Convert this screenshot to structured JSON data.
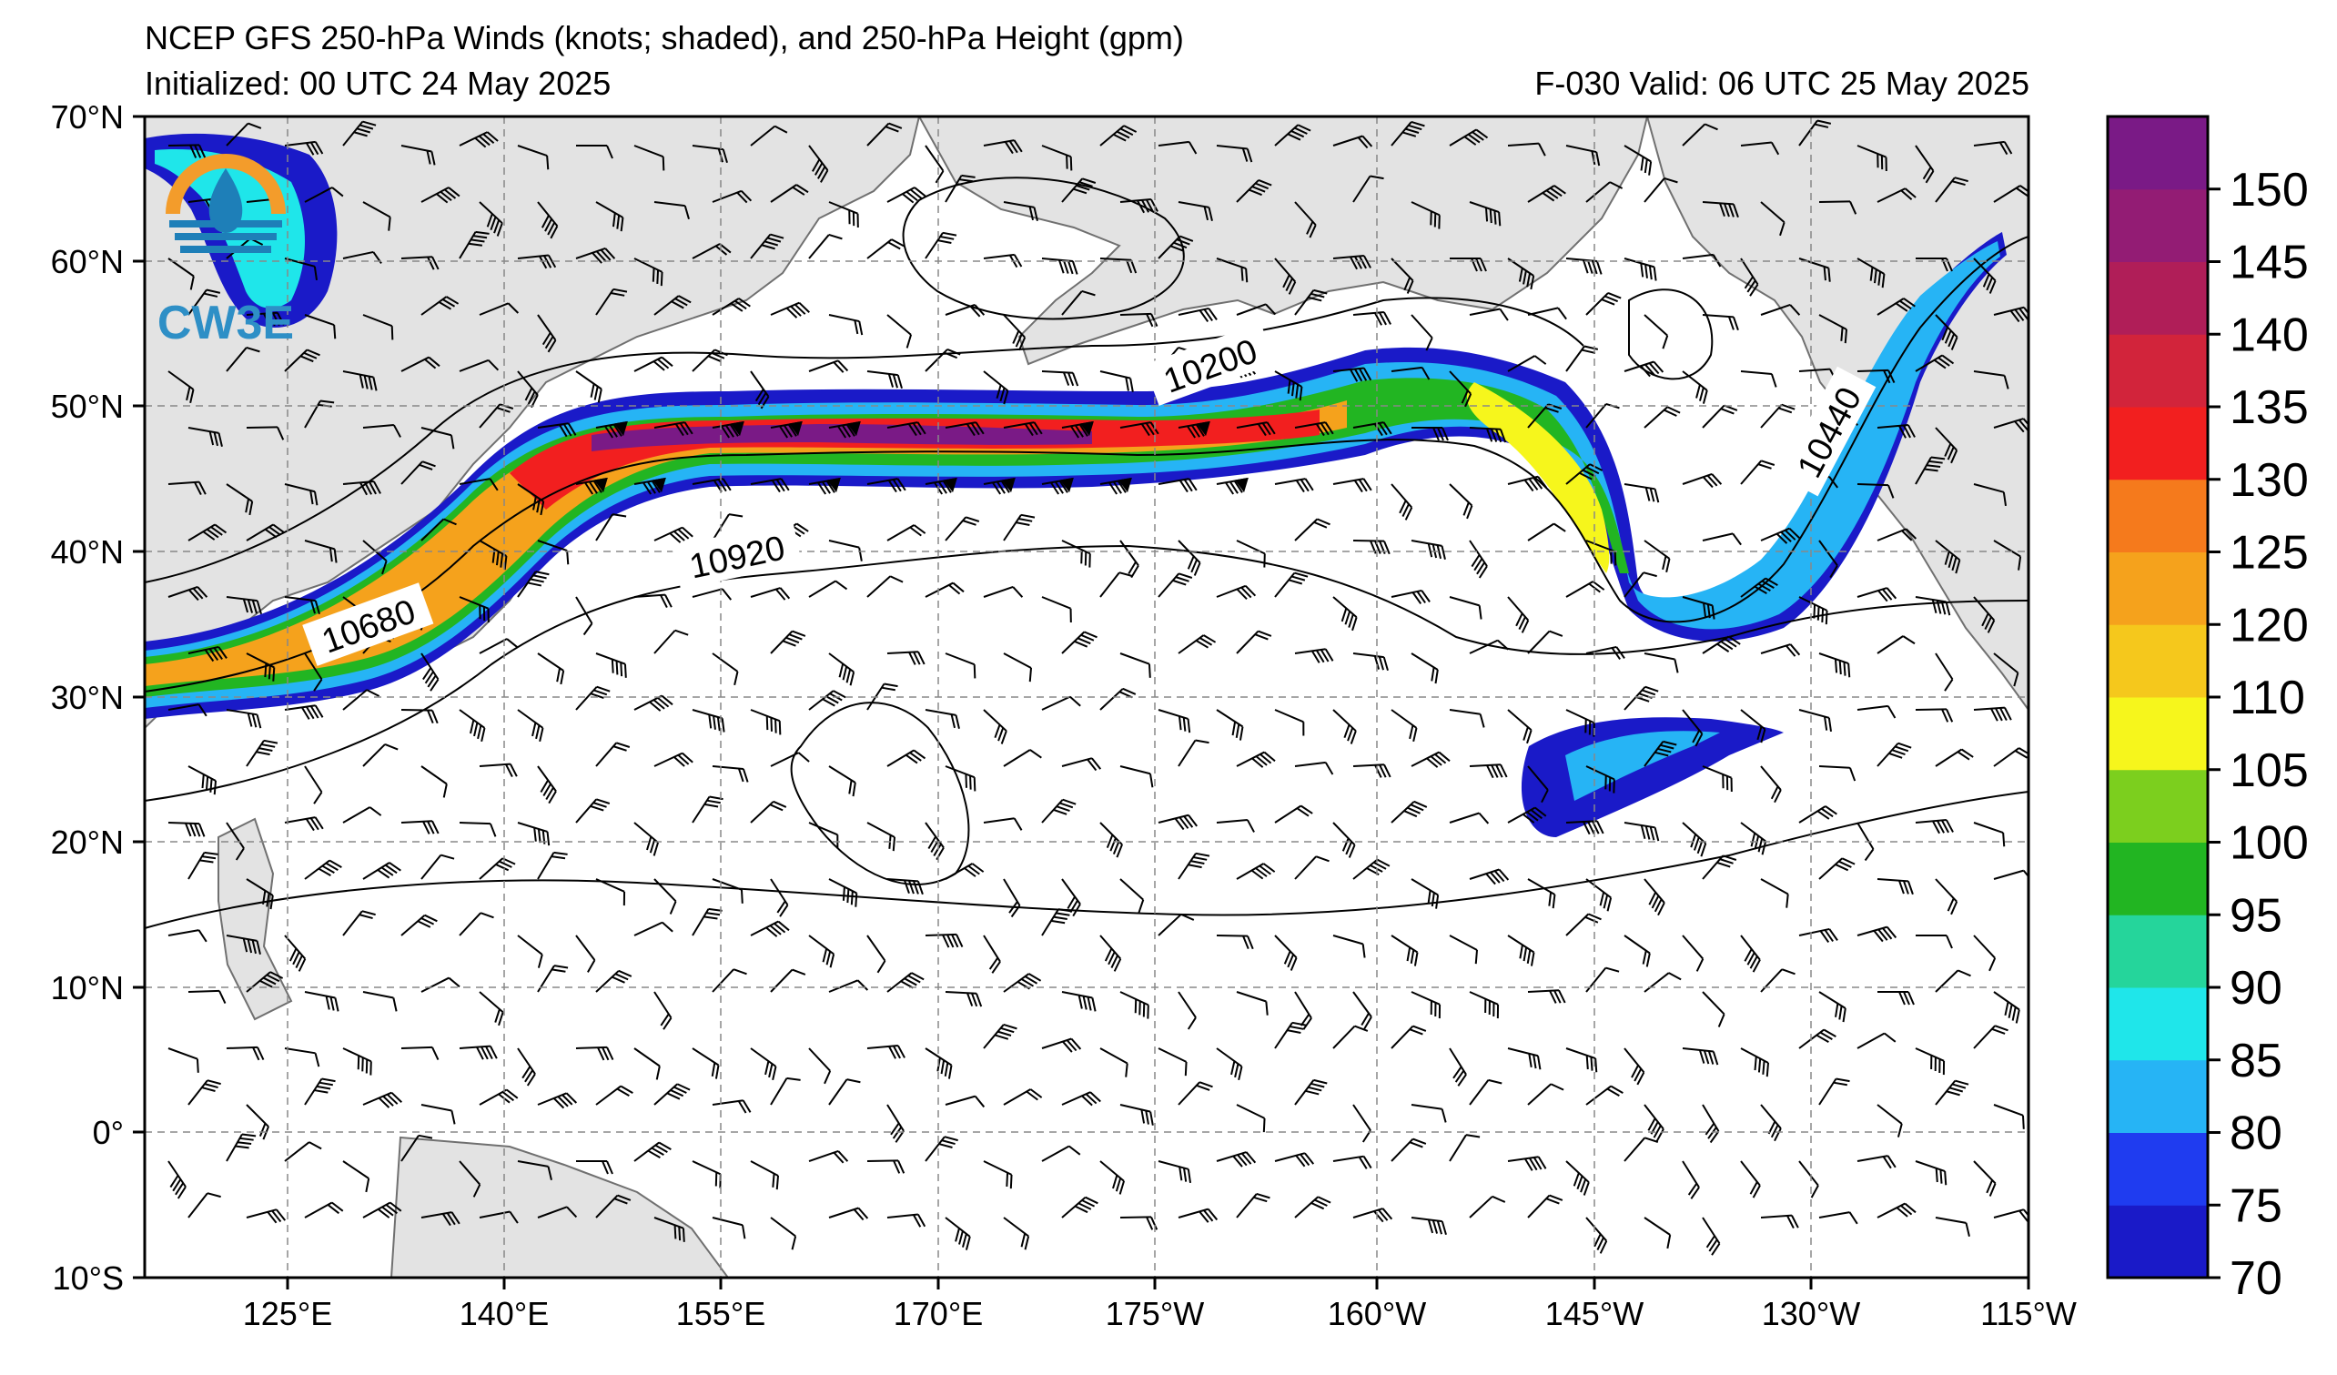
{
  "header": {
    "title": "NCEP GFS 250-hPa Winds (knots; shaded), and 250-hPa Height (gpm)",
    "init": "Initialized: 00 UTC 24 May 2025",
    "forecast": "F-030  Valid: 06 UTC 25 May 2025"
  },
  "logo": {
    "text": "CW3E",
    "colors": {
      "ring": "#F39C2B",
      "drop": "#1E7FB8",
      "text": "#2E8FC6"
    }
  },
  "axes": {
    "lat_labels": [
      "70°N",
      "60°N",
      "50°N",
      "40°N",
      "30°N",
      "20°N",
      "10°N",
      "0°",
      "10°S"
    ],
    "lon_labels": [
      "125°E",
      "140°E",
      "155°E",
      "170°E",
      "175°W",
      "160°W",
      "145°W",
      "130°W",
      "115°W"
    ]
  },
  "contours": {
    "labels": [
      "10200",
      "10440",
      "10680",
      "10920"
    ]
  },
  "colorbar": {
    "ticks": [
      "70",
      "75",
      "80",
      "85",
      "90",
      "95",
      "100",
      "105",
      "110",
      "120",
      "125",
      "130",
      "135",
      "140",
      "145",
      "150"
    ],
    "colors": [
      "#1A1AC8",
      "#1F3CF0",
      "#26B4F5",
      "#1FE6EA",
      "#25D59B",
      "#22B522",
      "#7CCF1E",
      "#F6F61C",
      "#F5C81C",
      "#F5A21C",
      "#F57A1C",
      "#F21F1F",
      "#D2243B",
      "#B01E58",
      "#931C74",
      "#7A1A86"
    ]
  },
  "map": {
    "land_color": "#E3E3E3",
    "coast_color": "#707070",
    "grid_color": "#888888"
  }
}
